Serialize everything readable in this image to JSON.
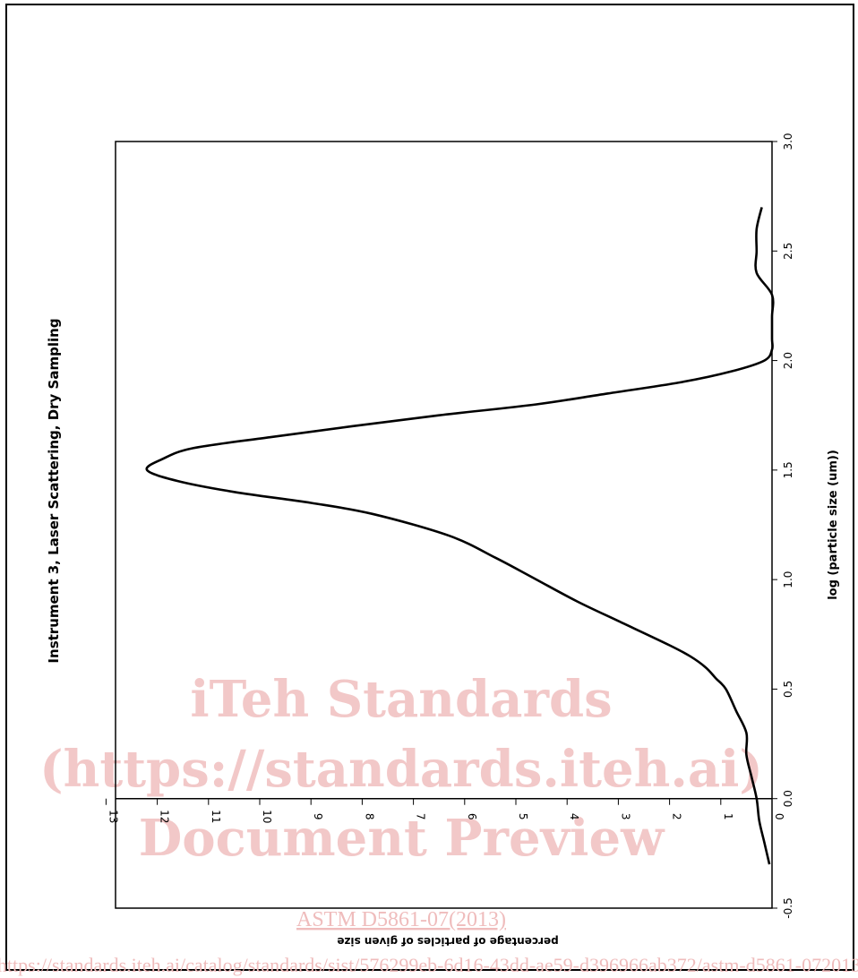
{
  "chart_data": {
    "type": "line",
    "orientation": "rotated-90-clockwise",
    "title": "Instrument 3, Laser Scattering, Dry Sampling",
    "xlabel": "log (particle size (um))",
    "ylabel": "percentage of particles of given size",
    "xlim": [
      -0.5,
      3.0
    ],
    "ylim": [
      0,
      13
    ],
    "xticks": [
      "-0.5",
      "0.0",
      "0.5",
      "1.0",
      "1.5",
      "2.0",
      "2.5",
      "3.0"
    ],
    "yticks": [
      "0",
      "1",
      "2",
      "3",
      "4",
      "5",
      "6",
      "7",
      "8",
      "9",
      "10",
      "11",
      "12",
      "13"
    ],
    "grid": false,
    "series": [
      {
        "x": [
          -0.3,
          -0.2,
          -0.1,
          0.0,
          0.1,
          0.2,
          0.3,
          0.4,
          0.5,
          0.55,
          0.6,
          0.65,
          0.7,
          0.8,
          0.9,
          1.0,
          1.1,
          1.2,
          1.3,
          1.35,
          1.4,
          1.45,
          1.5,
          1.55,
          1.6,
          1.65,
          1.7,
          1.75,
          1.8,
          1.85,
          1.9,
          1.95,
          2.0,
          2.05,
          2.1,
          2.2,
          2.3,
          2.4,
          2.5,
          2.6,
          2.7
        ],
        "y": [
          0.05,
          0.15,
          0.25,
          0.3,
          0.4,
          0.5,
          0.5,
          0.7,
          0.9,
          1.1,
          1.3,
          1.6,
          2.0,
          2.9,
          3.8,
          4.6,
          5.4,
          6.3,
          7.8,
          9.0,
          10.5,
          11.6,
          12.2,
          11.9,
          11.3,
          9.8,
          8.2,
          6.5,
          4.6,
          3.2,
          1.8,
          0.8,
          0.15,
          0.0,
          0.0,
          0.0,
          0.0,
          0.3,
          0.3,
          0.3,
          0.2
        ]
      }
    ]
  },
  "watermark": {
    "line1": "iTeh Standards",
    "line2": "(https://standards.iteh.ai)",
    "line3": "Document Preview",
    "code": "ASTM D5861-07(2013)",
    "link": "https://standards.iteh.ai/catalog/standards/sist/576299eb-6d16-43dd-ae59-d396966ab372/astm-d5861-072013"
  }
}
